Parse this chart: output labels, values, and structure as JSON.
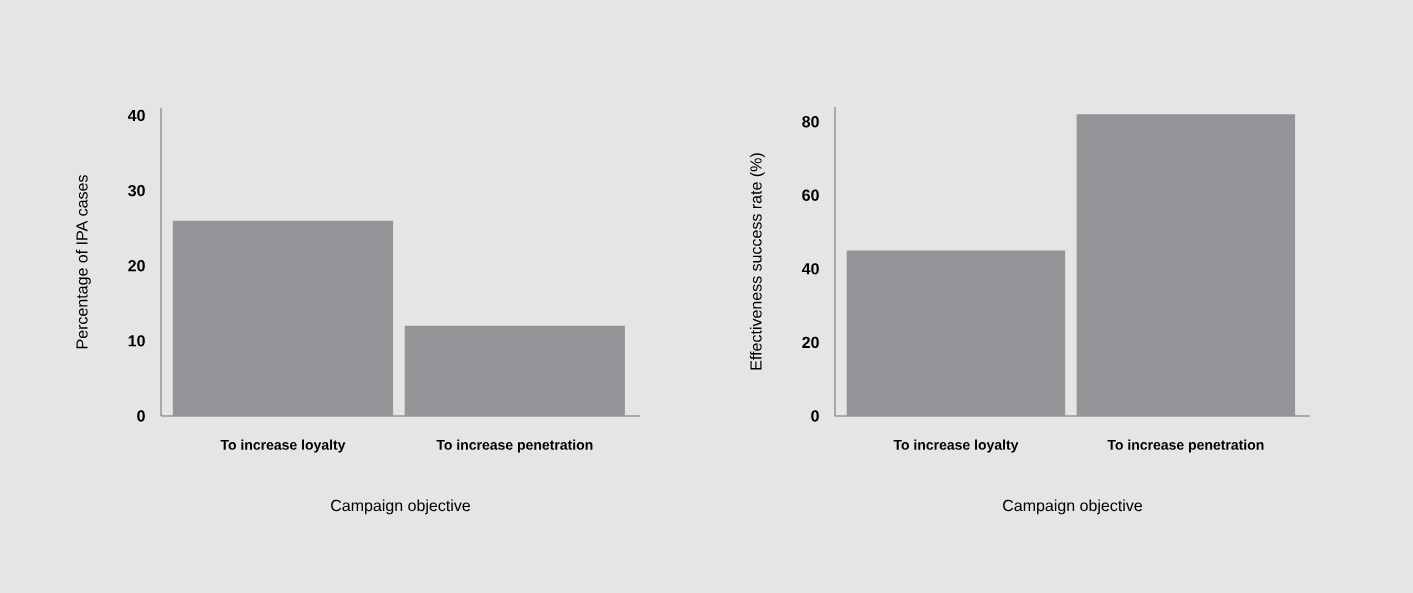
{
  "chart_data": [
    {
      "type": "bar",
      "xlabel": "Campaign objective",
      "ylabel": "Percentage of IPA cases",
      "categories": [
        "To increase loyalty",
        "To increase penetration"
      ],
      "values": [
        26,
        12
      ],
      "color": "#949599",
      "ylim": [
        0,
        41
      ],
      "yticks": [
        0,
        10,
        20,
        30,
        40
      ]
    },
    {
      "type": "bar",
      "xlabel": "Campaign objective",
      "ylabel": "Effectiveness success rate (%)",
      "categories": [
        "To increase loyalty",
        "To increase penetration"
      ],
      "values": [
        45,
        82
      ],
      "color": "#949599",
      "ylim": [
        0,
        84
      ],
      "yticks": [
        0,
        20,
        40,
        60,
        80
      ]
    }
  ]
}
